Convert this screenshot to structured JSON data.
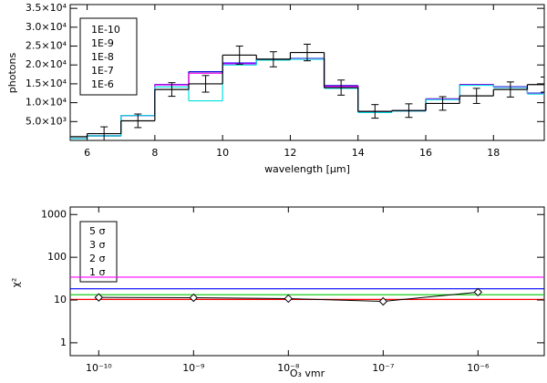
{
  "chart_data": [
    {
      "type": "histogram",
      "xlabel": "wavelength [μm]",
      "ylabel": "photons",
      "bins": [
        5,
        6,
        7,
        8,
        9,
        10,
        11,
        12,
        13,
        14,
        15,
        16,
        17,
        18,
        19,
        20
      ],
      "series": [
        {
          "name": "1E-10",
          "color": "#ff0000",
          "values": [
            500,
            1200,
            6600,
            14800,
            18200,
            20500,
            21500,
            21700,
            14500,
            7500,
            7900,
            11000,
            14800,
            14200,
            12500
          ]
        },
        {
          "name": "1E-9",
          "color": "#00c800",
          "values": [
            500,
            1200,
            6600,
            14800,
            18200,
            20500,
            21500,
            21700,
            14500,
            7500,
            7900,
            11000,
            14800,
            14200,
            12500
          ]
        },
        {
          "name": "1E-8",
          "color": "#0000ff",
          "values": [
            500,
            1200,
            6600,
            14800,
            18200,
            20500,
            21500,
            21700,
            14500,
            7500,
            7900,
            11000,
            14800,
            14200,
            12500
          ]
        },
        {
          "name": "1E-7",
          "color": "#ff00ff",
          "values": [
            500,
            1200,
            6600,
            14700,
            17800,
            20300,
            21400,
            21600,
            14300,
            7500,
            7800,
            10900,
            14700,
            14100,
            12400
          ]
        },
        {
          "name": "1E-6",
          "color": "#00e0e0",
          "values": [
            500,
            1200,
            6600,
            14200,
            10500,
            20000,
            21300,
            21500,
            13800,
            7400,
            7800,
            10800,
            14600,
            14000,
            12300
          ]
        }
      ],
      "observed": {
        "color": "#000000",
        "values": [
          1000,
          1800,
          5200,
          13500,
          15000,
          22600,
          21500,
          23300,
          14000,
          7700,
          7900,
          9800,
          11800,
          13500,
          14800
        ],
        "errors": [
          null,
          1800,
          1800,
          1800,
          2200,
          2400,
          2000,
          2200,
          2000,
          1800,
          1800,
          1800,
          2000,
          2000,
          2000
        ]
      },
      "xlim": [
        5.5,
        19.5
      ],
      "xticks": [
        6,
        8,
        10,
        12,
        14,
        16,
        18
      ],
      "ylim": [
        0,
        36000
      ],
      "yticks": [
        {
          "value": 5000,
          "label": "5.0×10³"
        },
        {
          "value": 10000,
          "label": "1.0×10⁴"
        },
        {
          "value": 15000,
          "label": "1.5×10⁴"
        },
        {
          "value": 20000,
          "label": "2.0×10⁴"
        },
        {
          "value": 25000,
          "label": "2.5×10⁴"
        },
        {
          "value": 30000,
          "label": "3.0×10⁴"
        },
        {
          "value": 35000,
          "label": "3.5×10⁴"
        }
      ],
      "legend": "upper left"
    },
    {
      "type": "line",
      "xlabel": "O₃ vmr",
      "ylabel": "χ²",
      "xscale": "log",
      "yscale": "log",
      "x": [
        1e-10,
        1e-09,
        1e-08,
        1e-07,
        1e-06
      ],
      "values": [
        11.5,
        11.3,
        10.8,
        9.3,
        15.3
      ],
      "color": "#000000",
      "levels": [
        {
          "name": "5 σ",
          "color": "#ff00ff",
          "value": 34.3
        },
        {
          "name": "3 σ",
          "color": "#0000ff",
          "value": 18.3
        },
        {
          "name": "2 σ",
          "color": "#00c800",
          "value": 13.3
        },
        {
          "name": "1 σ",
          "color": "#ff0000",
          "value": 10.3
        }
      ],
      "xlim": [
        5e-11,
        5e-06
      ],
      "xticks": [
        {
          "value": 1e-10,
          "label": "10⁻¹⁰"
        },
        {
          "value": 1e-09,
          "label": "10⁻⁹"
        },
        {
          "value": 1e-08,
          "label": "10⁻⁸"
        },
        {
          "value": 1e-07,
          "label": "10⁻⁷"
        },
        {
          "value": 1e-06,
          "label": "10⁻⁶"
        }
      ],
      "ylim": [
        0.5,
        1500
      ],
      "yticks": [
        1,
        10,
        100,
        1000
      ],
      "legend": "upper left"
    }
  ]
}
